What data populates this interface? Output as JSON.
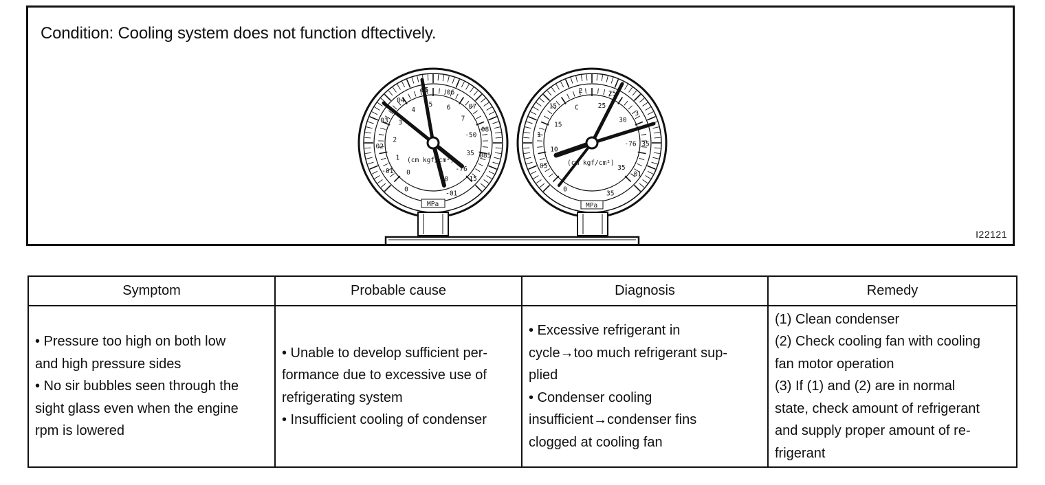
{
  "figure": {
    "condition": "Condition: Cooling system does not function dftectively.",
    "figure_id": "I22121",
    "low_gauge": {
      "outer_labels": [
        "0",
        "-01",
        "02",
        "03",
        "04",
        "05",
        "06",
        "07",
        "08",
        "085",
        "15",
        "-01"
      ],
      "inner_labels": [
        "0",
        "1",
        "2",
        "3",
        "4",
        "5",
        "6",
        "7",
        "-50",
        "35",
        "-76",
        "0"
      ],
      "unit_label": "(cm kgf/cm²)",
      "mpa_label": "MPa"
    },
    "high_gauge": {
      "outer_labels": [
        "0",
        "05",
        "1",
        "15",
        "2",
        "25",
        "3",
        "35",
        "-01",
        "35"
      ],
      "inner_labels": [
        "10",
        "15",
        "C",
        "25",
        "30",
        "-76",
        "35"
      ],
      "unit_label": "(cm  kgf/cm²)",
      "mpa_label": "MPa"
    }
  },
  "table": {
    "headers": [
      "Symptom",
      "Probable cause",
      "Diagnosis",
      "Remedy"
    ],
    "symptom": [
      "• Pressure too high on both low",
      "and high pressure sides",
      "• No sir bubbles seen through the",
      "sight glass even when the engine",
      "rpm is lowered"
    ],
    "cause": [
      "• Unable to develop sufficient per-",
      "formance due to excessive use of",
      "refrigerating system",
      "• Insufficient cooling of condenser"
    ],
    "diagnosis": [
      "• Excessive refrigerant in",
      "cycle→too much refrigerant sup-",
      "plied",
      "• Condenser cooling",
      "insufficient→condenser fins",
      "clogged at cooling fan"
    ],
    "remedy": [
      "(1) Clean condenser",
      "(2) Check cooling fan with cooling",
      "fan motor operation",
      "(3) If (1) and (2) are in normal",
      "state, check amount of refrigerant",
      "and supply proper amount of re-",
      "frigerant"
    ]
  }
}
